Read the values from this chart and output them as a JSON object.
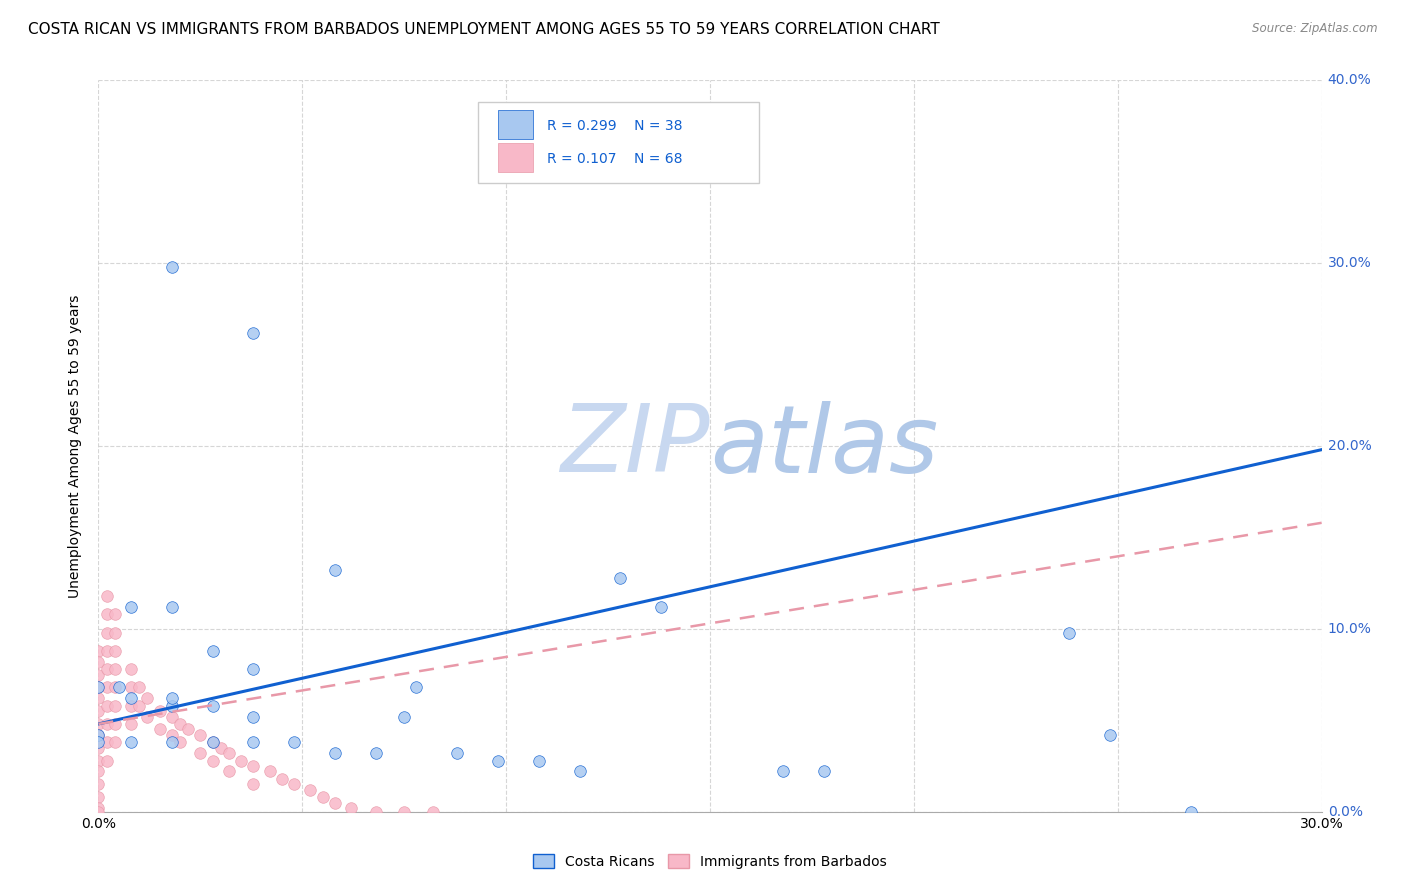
{
  "title": "COSTA RICAN VS IMMIGRANTS FROM BARBADOS UNEMPLOYMENT AMONG AGES 55 TO 59 YEARS CORRELATION CHART",
  "source": "Source: ZipAtlas.com",
  "xlim": [
    0.0,
    0.3
  ],
  "ylim": [
    0.0,
    0.4
  ],
  "ylabel": "Unemployment Among Ages 55 to 59 years",
  "blue_scatter_x": [
    0.005,
    0.018,
    0.038,
    0.058,
    0.008,
    0.018,
    0.028,
    0.038,
    0.078,
    0.018,
    0.028,
    0.038,
    0.075,
    0.128,
    0.138,
    0.0,
    0.008,
    0.018,
    0.0,
    0.0,
    0.008,
    0.018,
    0.028,
    0.038,
    0.048,
    0.058,
    0.068,
    0.088,
    0.098,
    0.108,
    0.118,
    0.168,
    0.178,
    0.238,
    0.248,
    0.268
  ],
  "blue_scatter_y": [
    0.068,
    0.298,
    0.262,
    0.132,
    0.112,
    0.112,
    0.088,
    0.078,
    0.068,
    0.058,
    0.058,
    0.052,
    0.052,
    0.128,
    0.112,
    0.068,
    0.062,
    0.062,
    0.042,
    0.038,
    0.038,
    0.038,
    0.038,
    0.038,
    0.038,
    0.032,
    0.032,
    0.032,
    0.028,
    0.028,
    0.022,
    0.022,
    0.022,
    0.098,
    0.042,
    0.0
  ],
  "pink_scatter_x": [
    0.0,
    0.0,
    0.0,
    0.0,
    0.0,
    0.0,
    0.0,
    0.0,
    0.0,
    0.0,
    0.0,
    0.0,
    0.0,
    0.0,
    0.0,
    0.002,
    0.002,
    0.002,
    0.002,
    0.002,
    0.002,
    0.002,
    0.002,
    0.002,
    0.002,
    0.004,
    0.004,
    0.004,
    0.004,
    0.004,
    0.004,
    0.004,
    0.004,
    0.008,
    0.008,
    0.008,
    0.008,
    0.01,
    0.01,
    0.012,
    0.012,
    0.015,
    0.015,
    0.018,
    0.018,
    0.02,
    0.02,
    0.022,
    0.025,
    0.025,
    0.028,
    0.028,
    0.03,
    0.032,
    0.032,
    0.035,
    0.038,
    0.038,
    0.042,
    0.045,
    0.048,
    0.052,
    0.055,
    0.058,
    0.062,
    0.068,
    0.075,
    0.082
  ],
  "pink_scatter_y": [
    0.088,
    0.082,
    0.075,
    0.068,
    0.062,
    0.055,
    0.048,
    0.042,
    0.035,
    0.028,
    0.022,
    0.015,
    0.008,
    0.002,
    0.0,
    0.118,
    0.108,
    0.098,
    0.088,
    0.078,
    0.068,
    0.058,
    0.048,
    0.038,
    0.028,
    0.108,
    0.098,
    0.088,
    0.078,
    0.068,
    0.058,
    0.048,
    0.038,
    0.078,
    0.068,
    0.058,
    0.048,
    0.068,
    0.058,
    0.062,
    0.052,
    0.055,
    0.045,
    0.052,
    0.042,
    0.048,
    0.038,
    0.045,
    0.042,
    0.032,
    0.038,
    0.028,
    0.035,
    0.032,
    0.022,
    0.028,
    0.025,
    0.015,
    0.022,
    0.018,
    0.015,
    0.012,
    0.008,
    0.005,
    0.002,
    0.0,
    0.0,
    0.0
  ],
  "blue_line_x": [
    0.0,
    0.3
  ],
  "blue_line_y": [
    0.048,
    0.198
  ],
  "pink_line_x": [
    0.0,
    0.3
  ],
  "pink_line_y": [
    0.048,
    0.158
  ],
  "blue_color": "#a8c8f0",
  "pink_color": "#f8b8c8",
  "blue_line_color": "#1060d0",
  "pink_line_color": "#e898a8",
  "grid_color": "#cccccc",
  "watermark_zip": "ZIP",
  "watermark_atlas": "atlas",
  "watermark_color": "#c8d8f0",
  "title_fontsize": 11,
  "axis_label_fontsize": 10,
  "tick_fontsize": 10,
  "marker_size": 70,
  "right_ytick_color": "#3366cc"
}
